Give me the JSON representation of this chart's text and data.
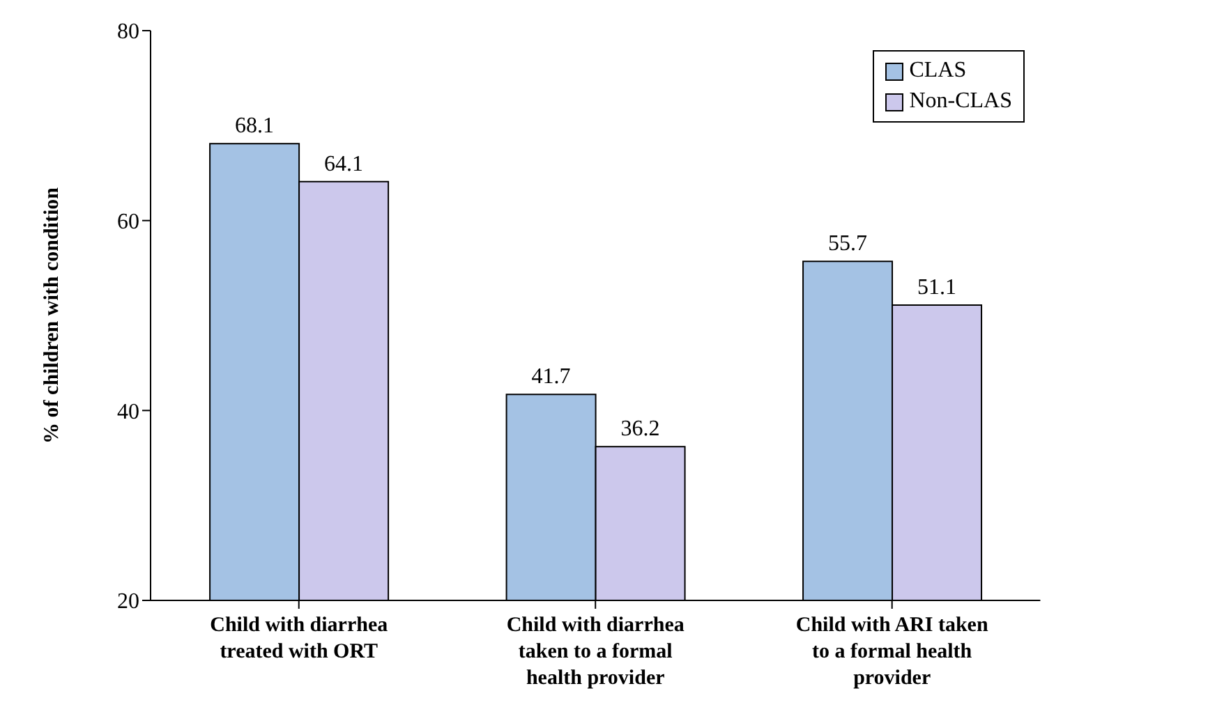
{
  "chart_data": {
    "type": "bar",
    "ylabel": "% of children with condition",
    "categories": [
      "Child with diarrhea treated with ORT",
      "Child with diarrhea taken to a formal health provider",
      "Child with ARI taken to a formal health provider"
    ],
    "series": [
      {
        "name": "CLAS",
        "color": "#a4c2e4",
        "values": [
          68.1,
          41.7,
          55.7
        ]
      },
      {
        "name": "Non-CLAS",
        "color": "#ccc8ec",
        "values": [
          64.1,
          36.2,
          51.1
        ]
      }
    ],
    "ylim": [
      20,
      80
    ],
    "yticks": [
      20,
      40,
      60,
      80
    ],
    "grid": false,
    "legend": "top right",
    "data_labels": true
  }
}
